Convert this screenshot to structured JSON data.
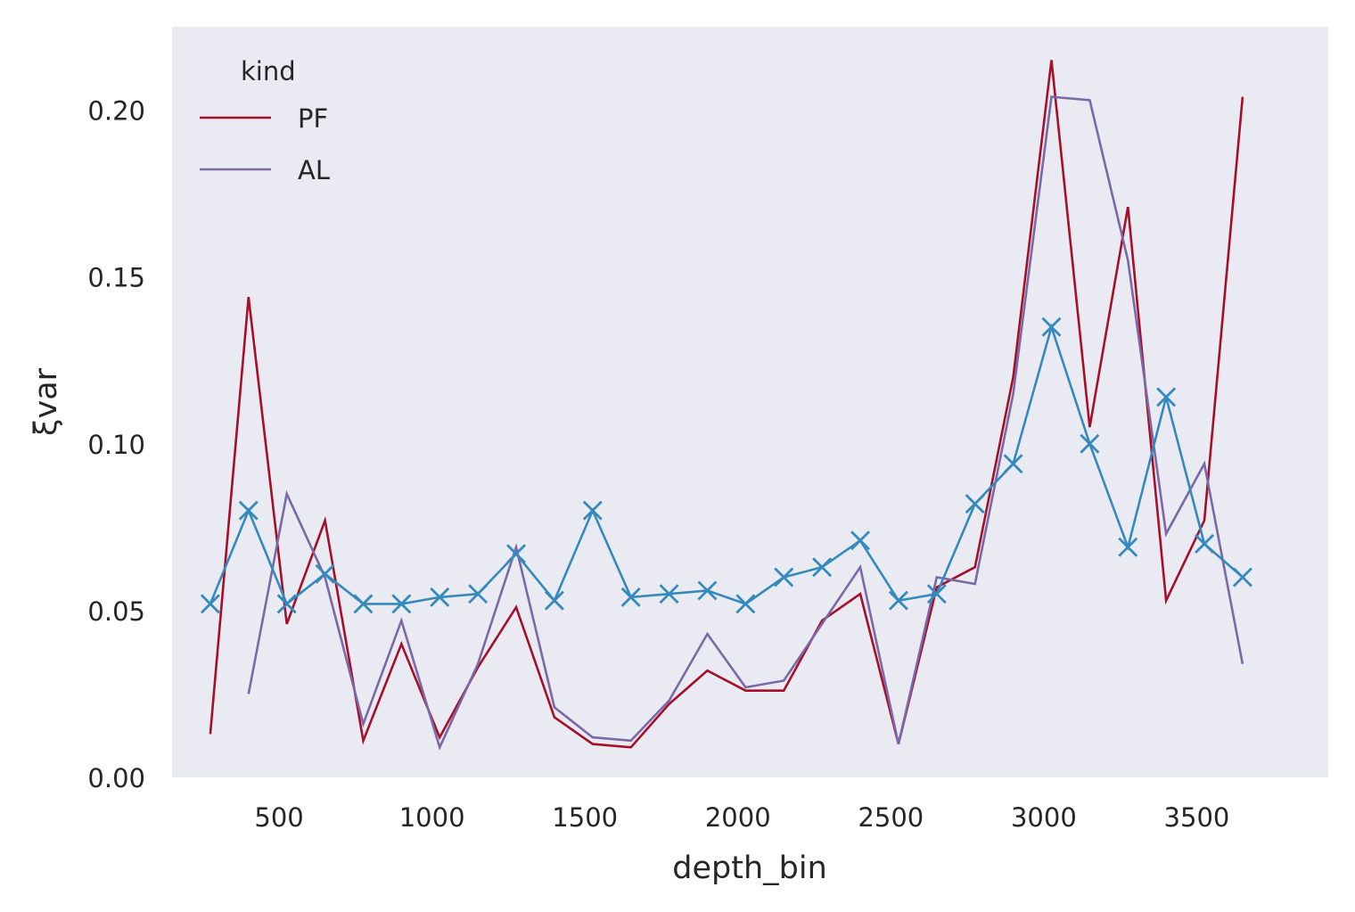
{
  "chart_data": {
    "type": "line",
    "xlabel": "depth_bin",
    "ylabel": "ξvar",
    "xlim": [
      150,
      3930
    ],
    "ylim": [
      0.0,
      0.225
    ],
    "xticks": [
      500,
      1000,
      1500,
      2000,
      2500,
      3000,
      3500
    ],
    "yticks": [
      0.0,
      0.05,
      0.1,
      0.15,
      0.2
    ],
    "xtick_labels": [
      "500",
      "1000",
      "1500",
      "2000",
      "2500",
      "3000",
      "3500"
    ],
    "ytick_labels": [
      "0.00",
      "0.05",
      "0.10",
      "0.15",
      "0.20"
    ],
    "grid": false,
    "background": "#eaeaf2",
    "legend": {
      "title": "kind",
      "placement": "top-left",
      "entries": [
        "PF",
        "AL"
      ]
    },
    "series": [
      {
        "name": "PF",
        "color": "#a50f2a",
        "marker": "none",
        "x": [
          275,
          400,
          525,
          650,
          775,
          900,
          1025,
          1150,
          1275,
          1400,
          1525,
          1650,
          1775,
          1900,
          2025,
          2150,
          2275,
          2400,
          2525,
          2650,
          2775,
          2900,
          3025,
          3150,
          3275,
          3400,
          3525,
          3650
        ],
        "y": [
          0.013,
          0.144,
          0.046,
          0.077,
          0.011,
          0.04,
          0.012,
          0.033,
          0.051,
          0.018,
          0.01,
          0.009,
          0.022,
          0.032,
          0.026,
          0.026,
          0.047,
          0.055,
          0.01,
          0.057,
          0.063,
          0.12,
          0.215,
          0.105,
          0.171,
          0.053,
          0.077,
          0.204
        ]
      },
      {
        "name": "AL",
        "color": "#7b68a6",
        "marker": "none",
        "x": [
          400,
          525,
          650,
          775,
          900,
          1025,
          1150,
          1275,
          1400,
          1525,
          1650,
          1775,
          1900,
          2025,
          2150,
          2275,
          2400,
          2525,
          2650,
          2775,
          2900,
          3025,
          3150,
          3275,
          3400,
          3525,
          3650
        ],
        "y": [
          0.025,
          0.085,
          0.06,
          0.016,
          0.047,
          0.009,
          0.034,
          0.069,
          0.021,
          0.012,
          0.011,
          0.023,
          0.043,
          0.027,
          0.029,
          0.046,
          0.063,
          0.01,
          0.06,
          0.058,
          0.115,
          0.204,
          0.203,
          0.155,
          0.073,
          0.094,
          0.034
        ]
      },
      {
        "name": "",
        "color": "#348abd",
        "marker": "x",
        "x": [
          275,
          400,
          525,
          650,
          775,
          900,
          1025,
          1150,
          1275,
          1400,
          1525,
          1650,
          1775,
          1900,
          2025,
          2150,
          2275,
          2400,
          2525,
          2650,
          2775,
          2900,
          3025,
          3150,
          3275,
          3400,
          3525,
          3650
        ],
        "y": [
          0.052,
          0.08,
          0.052,
          0.061,
          0.052,
          0.052,
          0.054,
          0.055,
          0.067,
          0.053,
          0.08,
          0.054,
          0.055,
          0.056,
          0.052,
          0.06,
          0.063,
          0.071,
          0.053,
          0.055,
          0.082,
          0.094,
          0.135,
          0.1,
          0.069,
          0.114,
          0.07,
          0.06
        ]
      }
    ]
  }
}
